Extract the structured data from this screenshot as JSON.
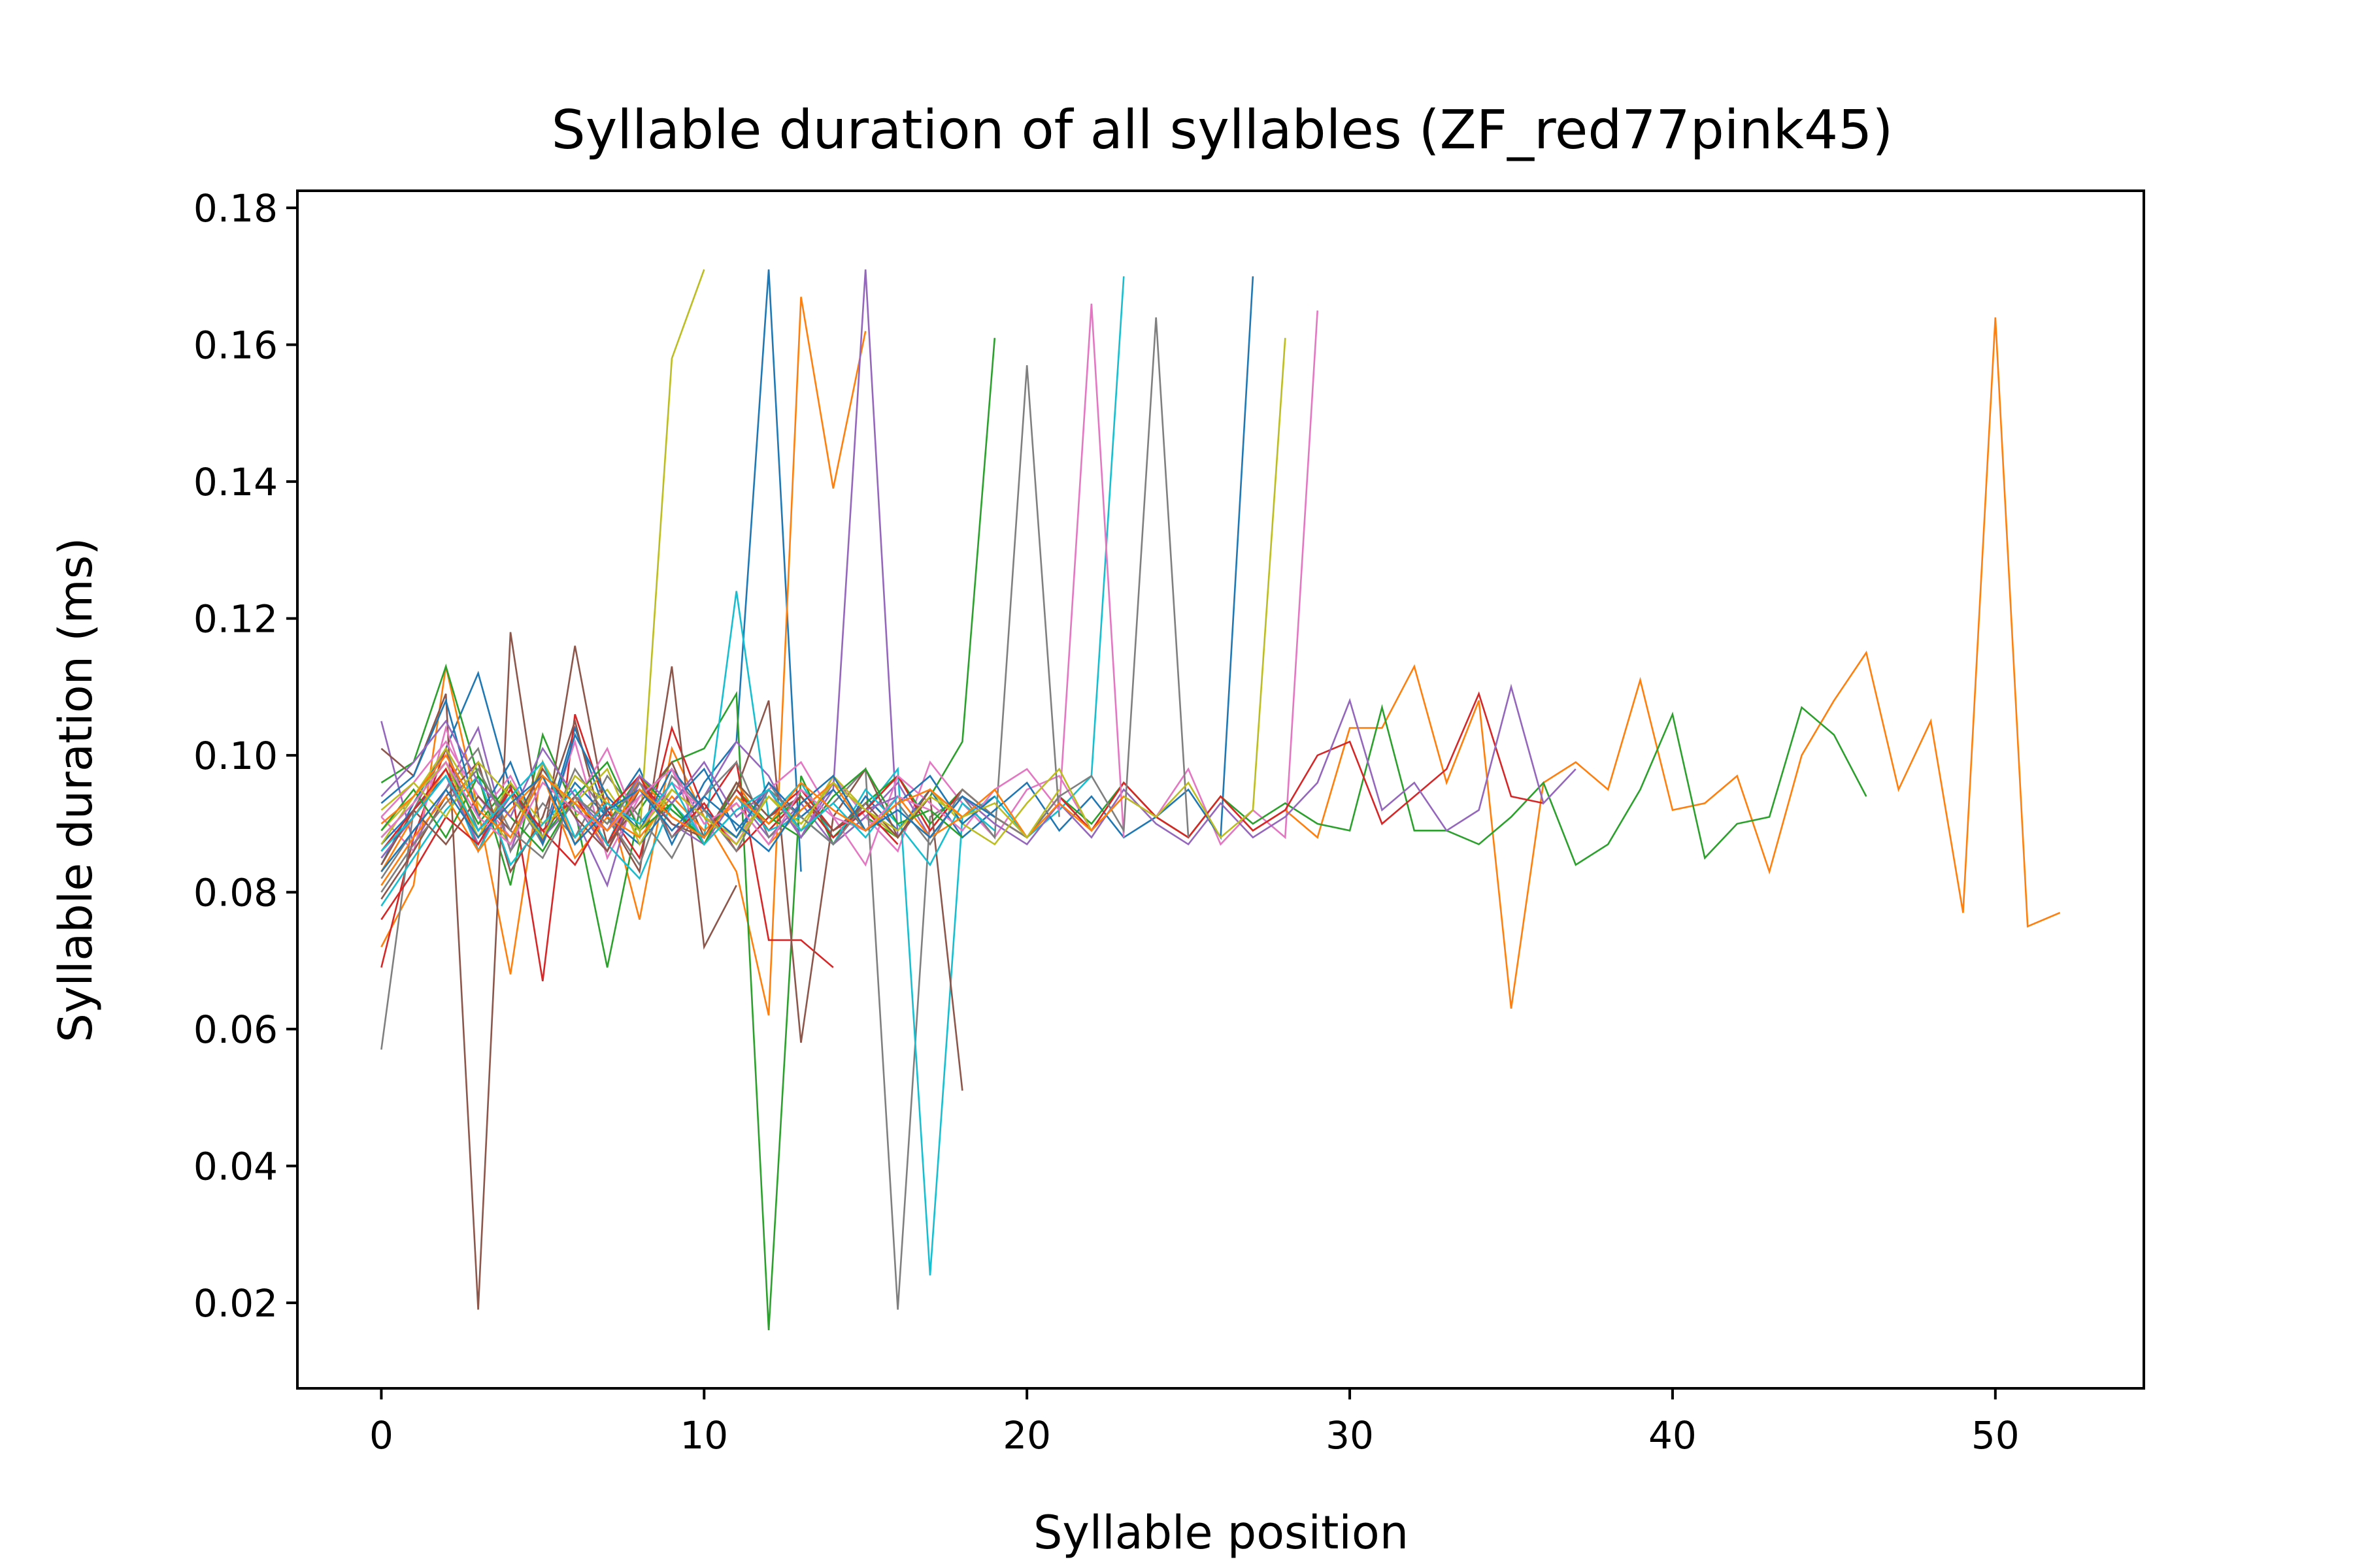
{
  "chart_data": {
    "type": "line",
    "title": "Syllable duration of all syllables (ZF_red77pink45)",
    "xlabel": "Syllable position",
    "ylabel": "Syllable duration (ms)",
    "xlim": [
      -2.6,
      54.6
    ],
    "ylim": [
      0.0075,
      0.1825
    ],
    "x_ticks": [
      0,
      10,
      20,
      30,
      40,
      50
    ],
    "y_ticks": [
      0.02,
      0.04,
      0.06,
      0.08,
      0.1,
      0.12,
      0.14,
      0.16,
      0.18
    ],
    "x_tick_labels": [
      "0",
      "10",
      "20",
      "30",
      "40",
      "50"
    ],
    "y_tick_labels": [
      "0.02",
      "0.04",
      "0.06",
      "0.08",
      "0.10",
      "0.12",
      "0.14",
      "0.16",
      "0.18"
    ],
    "grid": false,
    "legend": "none",
    "line_width": "thin",
    "palette": [
      "#1f77b4",
      "#ff7f0e",
      "#2ca02c",
      "#d62728",
      "#9467bd",
      "#8c564b",
      "#e377c2",
      "#7f7f7f",
      "#bcbd22",
      "#17becf"
    ],
    "series": [
      {
        "values": [
          0.084,
          0.093,
          0.101,
          0.112,
          0.095,
          0.088,
          0.104,
          0.091,
          0.098,
          0.087,
          0.096,
          0.102,
          0.171,
          0.083
        ]
      },
      {
        "values": [
          0.072,
          0.081,
          0.113,
          0.092,
          0.068,
          0.099,
          0.087,
          0.094,
          0.076,
          0.101,
          0.091,
          0.083,
          0.062,
          0.167,
          0.139,
          0.162
        ]
      },
      {
        "values": [
          0.096,
          0.099,
          0.113,
          0.097,
          0.081,
          0.103,
          0.092,
          0.069,
          0.092,
          0.099,
          0.101,
          0.109,
          0.016,
          0.097,
          0.087,
          0.091,
          0.088,
          0.094,
          0.102,
          0.161
        ]
      },
      {
        "values": [
          0.069,
          0.088,
          0.101,
          0.086,
          0.096,
          0.067,
          0.106,
          0.092,
          0.085,
          0.104,
          0.092,
          0.099,
          0.073,
          0.073,
          0.069
        ]
      },
      {
        "values": [
          0.105,
          0.087,
          0.095,
          0.104,
          0.086,
          0.099,
          0.091,
          0.081,
          0.097,
          0.088,
          0.094,
          0.102,
          0.097,
          0.088,
          0.095,
          0.171,
          0.088
        ]
      },
      {
        "values": [
          0.101,
          0.097,
          0.109,
          0.019,
          0.118,
          0.087,
          0.116,
          0.091,
          0.083,
          0.113,
          0.072,
          0.081
        ]
      },
      {
        "values": [
          0.091,
          0.086,
          0.104,
          0.091,
          0.097,
          0.088,
          0.102,
          0.085,
          0.094,
          0.098,
          0.087,
          0.092,
          0.095,
          0.088,
          0.097,
          0.091,
          0.086,
          0.099,
          0.093,
          0.088,
          0.095,
          0.097,
          0.089,
          0.094,
          0.091,
          0.098,
          0.087,
          0.092,
          0.088,
          0.165
        ]
      },
      {
        "values": [
          0.057,
          0.092,
          0.101,
          0.089,
          0.095,
          0.087,
          0.098,
          0.091,
          0.084,
          0.097,
          0.092,
          0.088,
          0.096,
          0.089,
          0.093,
          0.098,
          0.019,
          0.091,
          0.094,
          0.088,
          0.157,
          0.091
        ]
      },
      {
        "values": [
          0.089,
          0.094,
          0.101,
          0.093,
          0.087,
          0.099,
          0.091,
          0.095,
          0.088,
          0.158,
          0.171
        ]
      },
      {
        "values": [
          0.085,
          0.091,
          0.098,
          0.086,
          0.095,
          0.089,
          0.094,
          0.087,
          0.097,
          0.092,
          0.088,
          0.124,
          0.091,
          0.096,
          0.088,
          0.092,
          0.098,
          0.024,
          0.091,
          0.094,
          0.088,
          0.092,
          0.097,
          0.17
        ]
      },
      {
        "values": [
          0.087,
          0.092,
          0.097,
          0.089,
          0.094,
          0.088,
          0.096,
          0.091,
          0.087,
          0.093,
          0.098,
          0.089,
          0.095,
          0.091,
          0.087,
          0.094,
          0.089,
          0.095,
          0.088,
          0.092,
          0.096,
          0.089,
          0.094,
          0.088,
          0.091,
          0.095,
          0.088,
          0.17
        ]
      },
      {
        "values": [
          0.083,
          0.091,
          0.098,
          0.087,
          0.095,
          0.089,
          0.094,
          0.086,
          0.097,
          0.091,
          0.088,
          0.096,
          0.089,
          0.094,
          0.088,
          0.092,
          0.097,
          0.089,
          0.095,
          0.091,
          0.088,
          0.094,
          0.089,
          0.096,
          0.091,
          0.088,
          0.094,
          0.089,
          0.092,
          0.088,
          0.104,
          0.104,
          0.113,
          0.096,
          0.108,
          0.063,
          0.096,
          0.099,
          0.095,
          0.111,
          0.092,
          0.093,
          0.097,
          0.083,
          0.1,
          0.108,
          0.115,
          0.095,
          0.105,
          0.077,
          0.164,
          0.075,
          0.077
        ]
      },
      {
        "values": [
          0.088,
          0.093,
          0.099,
          0.09,
          0.096,
          0.088,
          0.094,
          0.09,
          0.097,
          0.092,
          0.088,
          0.095,
          0.09,
          0.094,
          0.088,
          0.093,
          0.097,
          0.09,
          0.095,
          0.091,
          0.088,
          0.094,
          0.09,
          0.096,
          0.091,
          0.088,
          0.094,
          0.09,
          0.093,
          0.09,
          0.089,
          0.107,
          0.089,
          0.089,
          0.087,
          0.091,
          0.096,
          0.084,
          0.087,
          0.095,
          0.106,
          0.085,
          0.09,
          0.091,
          0.107,
          0.103,
          0.094
        ]
      },
      {
        "values": [
          0.086,
          0.092,
          0.098,
          0.088,
          0.095,
          0.089,
          0.094,
          0.087,
          0.096,
          0.091,
          0.088,
          0.095,
          0.089,
          0.094,
          0.088,
          0.092,
          0.097,
          0.089,
          0.095,
          0.091,
          0.088,
          0.094,
          0.089,
          0.096,
          0.091,
          0.088,
          0.094,
          0.089,
          0.092,
          0.1,
          0.102,
          0.09,
          0.094,
          0.098,
          0.109,
          0.094,
          0.093
        ]
      },
      {
        "values": [
          0.085,
          0.091,
          0.097,
          0.087,
          0.094,
          0.088,
          0.093,
          0.086,
          0.096,
          0.09,
          0.087,
          0.094,
          0.088,
          0.093,
          0.087,
          0.091,
          0.096,
          0.088,
          0.094,
          0.09,
          0.087,
          0.093,
          0.088,
          0.095,
          0.09,
          0.087,
          0.093,
          0.088,
          0.091,
          0.096,
          0.108,
          0.092,
          0.096,
          0.089,
          0.092,
          0.11,
          0.093,
          0.098
        ]
      },
      {
        "values": [
          0.079,
          0.086,
          0.094,
          0.099,
          0.083,
          0.091,
          0.105,
          0.087,
          0.093,
          0.099,
          0.088,
          0.095,
          0.108,
          0.058,
          0.091,
          0.098,
          0.088,
          0.094,
          0.051
        ]
      },
      {
        "values": [
          0.091,
          0.096,
          0.102,
          0.094,
          0.088,
          0.097,
          0.093,
          0.101,
          0.089,
          0.096,
          0.092,
          0.087,
          0.095,
          0.099,
          0.091,
          0.084,
          0.097,
          0.093,
          0.089,
          0.095,
          0.098,
          0.092,
          0.166,
          0.088
        ]
      },
      {
        "values": [
          0.082,
          0.089,
          0.095,
          0.101,
          0.086,
          0.093,
          0.088,
          0.097,
          0.091,
          0.085,
          0.094,
          0.099,
          0.088,
          0.092,
          0.096,
          0.089,
          0.093,
          0.087,
          0.095,
          0.091,
          0.088,
          0.094,
          0.097,
          0.089,
          0.164,
          0.088
        ]
      },
      {
        "values": [
          0.087,
          0.094,
          0.099,
          0.088,
          0.096,
          0.09,
          0.093,
          0.098,
          0.087,
          0.095,
          0.091,
          0.088,
          0.094,
          0.089,
          0.097,
          0.092,
          0.088,
          0.095,
          0.09,
          0.087,
          0.093,
          0.098,
          0.089,
          0.094,
          0.091,
          0.096,
          0.088,
          0.092,
          0.161
        ]
      },
      {
        "values": [
          0.078,
          0.085,
          0.092,
          0.097,
          0.084,
          0.09,
          0.095,
          0.087,
          0.082,
          0.093,
          0.088,
          0.094,
          0.089,
          0.091,
          0.087,
          0.095,
          0.09,
          0.084,
          0.093,
          0.089
        ]
      },
      {
        "values": [
          0.093,
          0.097,
          0.108,
          0.091,
          0.099,
          0.087,
          0.103,
          0.094,
          0.089,
          0.098,
          0.092,
          0.088,
          0.096,
          0.091,
          0.095,
          0.089,
          0.093,
          0.097,
          0.09,
          0.094
        ]
      },
      {
        "values": [
          0.081,
          0.088,
          0.094,
          0.086,
          0.092,
          0.097,
          0.085,
          0.091,
          0.088,
          0.094,
          0.089,
          0.093,
          0.087,
          0.092,
          0.096,
          0.089,
          0.094,
          0.088,
          0.091,
          0.095,
          0.088,
          0.093,
          0.089,
          0.094
        ]
      },
      {
        "values": [
          0.089,
          0.095,
          0.088,
          0.097,
          0.091,
          0.086,
          0.094,
          0.099,
          0.089,
          0.093,
          0.087,
          0.096,
          0.091,
          0.088,
          0.094,
          0.098,
          0.09,
          0.092,
          0.088
        ]
      },
      {
        "values": [
          0.076,
          0.083,
          0.091,
          0.087,
          0.095,
          0.089,
          0.084,
          0.092,
          0.097,
          0.088,
          0.093,
          0.086,
          0.091,
          0.095,
          0.089,
          0.092,
          0.087
        ]
      },
      {
        "values": [
          0.094,
          0.099,
          0.105,
          0.096,
          0.091,
          0.101,
          0.094,
          0.089,
          0.097,
          0.093,
          0.099,
          0.091,
          0.095,
          0.088,
          0.096,
          0.092,
          0.094
        ]
      },
      {
        "values": [
          0.084,
          0.092,
          0.087,
          0.094,
          0.089,
          0.098,
          0.091,
          0.086,
          0.095,
          0.09,
          0.088,
          0.096,
          0.091,
          0.094,
          0.089,
          0.093,
          0.088,
          0.095,
          0.091
        ]
      },
      {
        "values": [
          0.088,
          0.093,
          0.099,
          0.091,
          0.087,
          0.096,
          0.092,
          0.089,
          0.094,
          0.098,
          0.09,
          0.093,
          0.087,
          0.095,
          0.091,
          0.089,
          0.094,
          0.092
        ]
      },
      {
        "values": [
          0.08,
          0.087,
          0.093,
          0.098,
          0.089,
          0.085,
          0.094,
          0.09,
          0.096,
          0.088,
          0.092,
          0.086,
          0.095,
          0.091,
          0.087,
          0.093
        ]
      },
      {
        "values": [
          0.092,
          0.096,
          0.091,
          0.099,
          0.094,
          0.088,
          0.097,
          0.093,
          0.089,
          0.095,
          0.091,
          0.087,
          0.094,
          0.09,
          0.096,
          0.092,
          0.089,
          0.094,
          0.091,
          0.093,
          0.088,
          0.095
        ]
      },
      {
        "values": [
          0.086,
          0.091,
          0.097,
          0.089,
          0.094,
          0.099,
          0.088,
          0.093,
          0.09,
          0.096,
          0.087,
          0.092,
          0.095,
          0.089,
          0.093,
          0.088,
          0.094
        ]
      },
      {
        "values": [
          0.083,
          0.089,
          0.095,
          0.088,
          0.093,
          0.097,
          0.087,
          0.092,
          0.095,
          0.089,
          0.094,
          0.09,
          0.086,
          0.093,
          0.097,
          0.089,
          0.092,
          0.088,
          0.094,
          0.091
        ]
      },
      {
        "values": [
          0.09,
          0.094,
          0.1,
          0.092,
          0.088,
          0.097,
          0.093,
          0.089,
          0.095,
          0.091,
          0.088,
          0.094,
          0.09,
          0.096,
          0.092,
          0.089,
          0.093,
          0.095,
          0.091
        ]
      }
    ]
  }
}
